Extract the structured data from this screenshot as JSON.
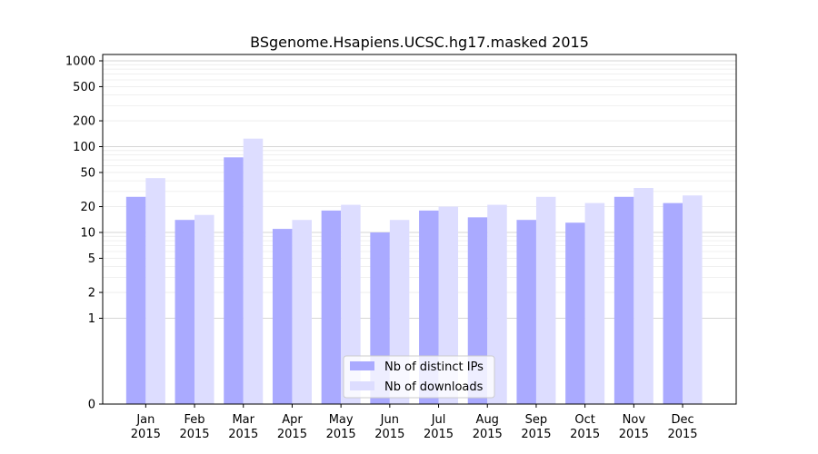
{
  "chart_data": {
    "type": "bar",
    "title": "BSgenome.Hsapiens.UCSC.hg17.masked 2015",
    "xlabel": "",
    "ylabel": "",
    "y_scale": "symlog",
    "ylim": [
      0,
      1300
    ],
    "y_ticks": [
      0,
      1,
      2,
      5,
      10,
      20,
      50,
      100,
      200,
      500,
      1000
    ],
    "y_tick_labels": [
      "0",
      "1",
      "2",
      "5",
      "10",
      "20",
      "50",
      "100",
      "200",
      "500",
      "1000"
    ],
    "grid": "horizontal",
    "legend_position": "bottom-center",
    "categories": [
      [
        "Jan",
        "2015"
      ],
      [
        "Feb",
        "2015"
      ],
      [
        "Mar",
        "2015"
      ],
      [
        "Apr",
        "2015"
      ],
      [
        "May",
        "2015"
      ],
      [
        "Jun",
        "2015"
      ],
      [
        "Jul",
        "2015"
      ],
      [
        "Aug",
        "2015"
      ],
      [
        "Sep",
        "2015"
      ],
      [
        "Oct",
        "2015"
      ],
      [
        "Nov",
        "2015"
      ],
      [
        "Dec",
        "2015"
      ]
    ],
    "series": [
      {
        "name": "Nb of distinct IPs",
        "color": "#aaaaff",
        "values": [
          26,
          14,
          75,
          11,
          18,
          10,
          18,
          15,
          14,
          13,
          26,
          22
        ]
      },
      {
        "name": "Nb of downloads",
        "color": "#ddddff",
        "values": [
          43,
          16,
          124,
          14,
          21,
          14,
          20,
          21,
          26,
          22,
          33,
          27
        ]
      }
    ]
  }
}
